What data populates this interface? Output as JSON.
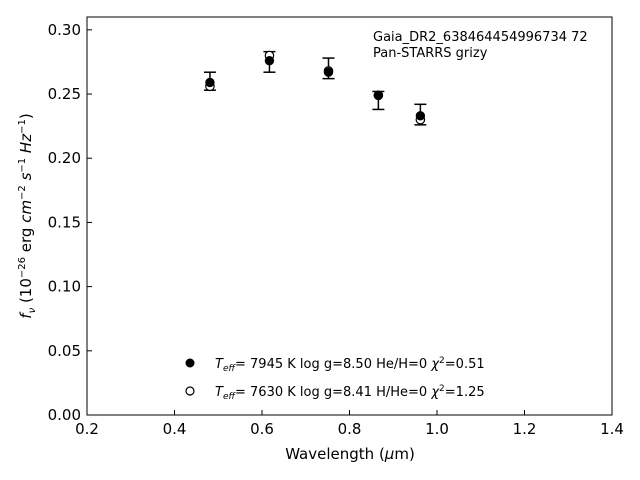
{
  "chart_data": {
    "type": "scatter",
    "title": "",
    "xlabel": "Wavelength (μm)",
    "ylabel": "f_ν (10^-26 erg cm^-2 s^-1 Hz^-1)",
    "xlim": [
      0.2,
      1.4
    ],
    "ylim": [
      0.0,
      0.31
    ],
    "xticks": [
      "0.2",
      "0.4",
      "0.6",
      "0.8",
      "1.0",
      "1.2",
      "1.4"
    ],
    "yticks": [
      "0.00",
      "0.05",
      "0.10",
      "0.15",
      "0.20",
      "0.25",
      "0.30"
    ],
    "grid": false,
    "annotations": [
      "Gaia_DR2_638464454996734 72",
      "Pan-STARRS grizy"
    ],
    "observed": {
      "x": [
        0.481,
        0.617,
        0.752,
        0.866,
        0.962
      ],
      "y": [
        0.26,
        0.275,
        0.27,
        0.245,
        0.234
      ],
      "err": [
        0.007,
        0.008,
        0.008,
        0.007,
        0.008
      ]
    },
    "series": [
      {
        "name": "Teff= 7945 K log g=8.50 He/H=0 χ2=0.51",
        "marker": "filled-circle",
        "x": [
          0.481,
          0.617,
          0.752,
          0.866,
          0.962
        ],
        "y": [
          0.259,
          0.276,
          0.267,
          0.249,
          0.233
        ]
      },
      {
        "name": "Teff= 7630 K log g=8.41 H/He=0 χ2=1.25",
        "marker": "open-circle",
        "x": [
          0.481,
          0.617,
          0.752,
          0.866,
          0.962
        ],
        "y": [
          0.256,
          0.28,
          0.268,
          0.249,
          0.23
        ]
      }
    ],
    "legend_placement": "bottom-center",
    "legend": [
      {
        "teff": "7945 K",
        "logg": "log g=8.50",
        "comp": "He/H=0",
        "chi": "=0.51"
      },
      {
        "teff": "7630 K",
        "logg": "log g=8.41",
        "comp": "H/He=0",
        "chi": "=1.25"
      }
    ]
  }
}
